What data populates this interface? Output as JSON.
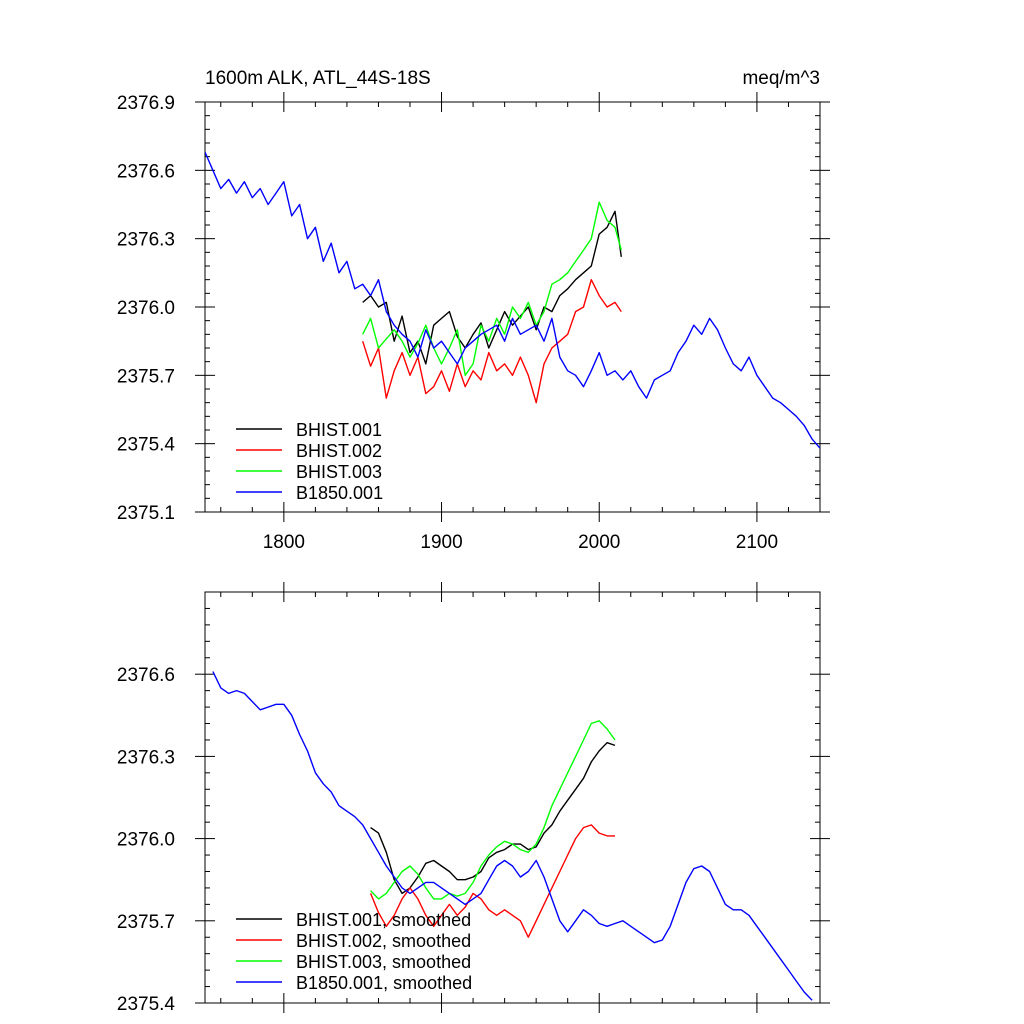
{
  "chart_data": [
    {
      "type": "line",
      "title": "1600m ALK, ATL_44S-18S",
      "units_label": "meq/m^3",
      "xlim": [
        1750,
        2140
      ],
      "ylim": [
        2375.1,
        2376.9
      ],
      "x_ticks": [
        1800,
        1900,
        2000,
        2100
      ],
      "x_tick_labels": [
        "1800",
        "1900",
        "2000",
        "2100"
      ],
      "y_ticks": [
        2375.1,
        2375.4,
        2375.7,
        2376.0,
        2376.3,
        2376.6,
        2376.9
      ],
      "y_tick_labels": [
        "2375.1",
        "2375.4",
        "2375.7",
        "2376.0",
        "2376.3",
        "2376.6",
        "2376.9"
      ],
      "grid": false,
      "legend_position": "bottom-left",
      "series": [
        {
          "name": "BHIST.001",
          "color": "#000000",
          "x": [
            1850,
            1855,
            1860,
            1865,
            1870,
            1875,
            1880,
            1885,
            1890,
            1895,
            1900,
            1905,
            1910,
            1915,
            1920,
            1925,
            1930,
            1935,
            1940,
            1945,
            1950,
            1955,
            1960,
            1965,
            1970,
            1975,
            1980,
            1985,
            1990,
            1995,
            2000,
            2005,
            2010,
            2014
          ],
          "y": [
            2376.02,
            2376.05,
            2376.0,
            2376.02,
            2375.85,
            2375.96,
            2375.8,
            2375.85,
            2375.75,
            2375.92,
            2375.95,
            2375.98,
            2375.87,
            2375.82,
            2375.88,
            2375.93,
            2375.82,
            2375.9,
            2375.98,
            2375.92,
            2375.96,
            2376.0,
            2375.9,
            2376.0,
            2375.98,
            2376.05,
            2376.08,
            2376.12,
            2376.15,
            2376.18,
            2376.32,
            2376.35,
            2376.42,
            2376.22
          ]
        },
        {
          "name": "BHIST.002",
          "color": "#ff0000",
          "x": [
            1850,
            1855,
            1860,
            1865,
            1870,
            1875,
            1880,
            1885,
            1890,
            1895,
            1900,
            1905,
            1910,
            1915,
            1920,
            1925,
            1930,
            1935,
            1940,
            1945,
            1950,
            1955,
            1960,
            1965,
            1970,
            1975,
            1980,
            1985,
            1990,
            1995,
            2000,
            2005,
            2010,
            2014
          ],
          "y": [
            2375.85,
            2375.74,
            2375.82,
            2375.6,
            2375.72,
            2375.8,
            2375.7,
            2375.78,
            2375.62,
            2375.65,
            2375.72,
            2375.63,
            2375.75,
            2375.65,
            2375.72,
            2375.68,
            2375.8,
            2375.72,
            2375.75,
            2375.7,
            2375.78,
            2375.7,
            2375.58,
            2375.75,
            2375.82,
            2375.85,
            2375.88,
            2375.98,
            2376.0,
            2376.12,
            2376.05,
            2376.0,
            2376.02,
            2375.98
          ]
        },
        {
          "name": "BHIST.003",
          "color": "#00ff00",
          "x": [
            1850,
            1855,
            1860,
            1865,
            1870,
            1875,
            1880,
            1885,
            1890,
            1895,
            1900,
            1905,
            1910,
            1915,
            1920,
            1925,
            1930,
            1935,
            1940,
            1945,
            1950,
            1955,
            1960,
            1965,
            1970,
            1975,
            1980,
            1985,
            1990,
            1995,
            2000,
            2005,
            2010,
            2014
          ],
          "y": [
            2375.88,
            2375.95,
            2375.82,
            2375.86,
            2375.9,
            2375.85,
            2375.78,
            2375.84,
            2375.92,
            2375.82,
            2375.75,
            2375.82,
            2375.9,
            2375.7,
            2375.75,
            2375.92,
            2375.85,
            2375.95,
            2375.88,
            2376.0,
            2375.95,
            2376.02,
            2375.92,
            2375.98,
            2376.1,
            2376.12,
            2376.15,
            2376.2,
            2376.25,
            2376.3,
            2376.46,
            2376.38,
            2376.35,
            2376.25
          ]
        },
        {
          "name": "B1850.001",
          "color": "#0000ff",
          "x": [
            1750,
            1755,
            1760,
            1765,
            1770,
            1775,
            1780,
            1785,
            1790,
            1795,
            1800,
            1805,
            1810,
            1815,
            1820,
            1825,
            1830,
            1835,
            1840,
            1845,
            1850,
            1855,
            1860,
            1865,
            1870,
            1875,
            1880,
            1885,
            1890,
            1895,
            1900,
            1905,
            1910,
            1915,
            1920,
            1925,
            1930,
            1935,
            1940,
            1945,
            1950,
            1955,
            1960,
            1965,
            1970,
            1975,
            1980,
            1985,
            1990,
            1995,
            2000,
            2005,
            2010,
            2015,
            2020,
            2025,
            2030,
            2035,
            2040,
            2045,
            2050,
            2055,
            2060,
            2065,
            2070,
            2075,
            2080,
            2085,
            2090,
            2095,
            2100,
            2105,
            2110,
            2115,
            2120,
            2125,
            2130,
            2135,
            2140
          ],
          "y": [
            2376.68,
            2376.6,
            2376.52,
            2376.56,
            2376.5,
            2376.55,
            2376.48,
            2376.52,
            2376.45,
            2376.5,
            2376.55,
            2376.4,
            2376.45,
            2376.3,
            2376.35,
            2376.2,
            2376.28,
            2376.15,
            2376.2,
            2376.08,
            2376.1,
            2376.05,
            2376.12,
            2375.98,
            2375.92,
            2375.88,
            2375.85,
            2375.78,
            2375.9,
            2375.82,
            2375.85,
            2375.8,
            2375.75,
            2375.82,
            2375.85,
            2375.88,
            2375.9,
            2375.92,
            2375.85,
            2375.95,
            2375.88,
            2375.9,
            2375.92,
            2375.85,
            2375.95,
            2375.78,
            2375.72,
            2375.7,
            2375.65,
            2375.72,
            2375.8,
            2375.7,
            2375.72,
            2375.68,
            2375.72,
            2375.65,
            2375.6,
            2375.68,
            2375.7,
            2375.72,
            2375.8,
            2375.85,
            2375.92,
            2375.88,
            2375.95,
            2375.9,
            2375.82,
            2375.75,
            2375.72,
            2375.78,
            2375.7,
            2375.65,
            2375.6,
            2375.58,
            2375.55,
            2375.52,
            2375.48,
            2375.42,
            2375.38
          ]
        }
      ]
    },
    {
      "type": "line",
      "title": "",
      "xlim": [
        1750,
        2140
      ],
      "ylim": [
        2375.4,
        2376.9
      ],
      "x_ticks": [
        1800,
        1900,
        2000,
        2100
      ],
      "y_ticks": [
        2375.4,
        2375.7,
        2376.0,
        2376.3,
        2376.6
      ],
      "y_tick_labels": [
        "2375.4",
        "2375.7",
        "2376.0",
        "2376.3",
        "2376.6"
      ],
      "grid": false,
      "legend_position": "bottom-left",
      "series": [
        {
          "name": "BHIST.001, smoothed",
          "color": "#000000",
          "x": [
            1855,
            1860,
            1865,
            1870,
            1875,
            1880,
            1885,
            1890,
            1895,
            1900,
            1905,
            1910,
            1915,
            1920,
            1925,
            1930,
            1935,
            1940,
            1945,
            1950,
            1955,
            1960,
            1965,
            1970,
            1975,
            1980,
            1985,
            1990,
            1995,
            2000,
            2005,
            2010
          ],
          "y": [
            2376.04,
            2376.02,
            2375.95,
            2375.85,
            2375.8,
            2375.82,
            2375.86,
            2375.91,
            2375.92,
            2375.9,
            2375.88,
            2375.85,
            2375.85,
            2375.86,
            2375.88,
            2375.93,
            2375.95,
            2375.96,
            2375.98,
            2375.98,
            2375.96,
            2375.97,
            2376.02,
            2376.05,
            2376.1,
            2376.14,
            2376.18,
            2376.22,
            2376.28,
            2376.32,
            2376.35,
            2376.34
          ]
        },
        {
          "name": "BHIST.002, smoothed",
          "color": "#ff0000",
          "x": [
            1855,
            1860,
            1865,
            1870,
            1875,
            1880,
            1885,
            1890,
            1895,
            1900,
            1905,
            1910,
            1915,
            1920,
            1925,
            1930,
            1935,
            1940,
            1945,
            1950,
            1955,
            1960,
            1965,
            1970,
            1975,
            1980,
            1985,
            1990,
            1995,
            2000,
            2005,
            2010
          ],
          "y": [
            2375.8,
            2375.73,
            2375.68,
            2375.72,
            2375.78,
            2375.82,
            2375.78,
            2375.72,
            2375.68,
            2375.72,
            2375.76,
            2375.72,
            2375.75,
            2375.8,
            2375.78,
            2375.74,
            2375.72,
            2375.74,
            2375.72,
            2375.7,
            2375.64,
            2375.7,
            2375.76,
            2375.82,
            2375.88,
            2375.94,
            2376.0,
            2376.04,
            2376.05,
            2376.02,
            2376.01,
            2376.01
          ]
        },
        {
          "name": "BHIST.003, smoothed",
          "color": "#00ff00",
          "x": [
            1855,
            1860,
            1865,
            1870,
            1875,
            1880,
            1885,
            1890,
            1895,
            1900,
            1905,
            1910,
            1915,
            1920,
            1925,
            1930,
            1935,
            1940,
            1945,
            1950,
            1955,
            1960,
            1965,
            1970,
            1975,
            1980,
            1985,
            1990,
            1995,
            2000,
            2005,
            2010
          ],
          "y": [
            2375.81,
            2375.78,
            2375.8,
            2375.84,
            2375.88,
            2375.9,
            2375.87,
            2375.82,
            2375.78,
            2375.78,
            2375.8,
            2375.79,
            2375.8,
            2375.84,
            2375.9,
            2375.94,
            2375.97,
            2375.99,
            2375.98,
            2375.96,
            2375.95,
            2375.98,
            2376.04,
            2376.12,
            2376.18,
            2376.24,
            2376.3,
            2376.36,
            2376.42,
            2376.43,
            2376.4,
            2376.36
          ]
        },
        {
          "name": "B1850.001, smoothed",
          "color": "#0000ff",
          "x": [
            1755,
            1760,
            1765,
            1770,
            1775,
            1780,
            1785,
            1790,
            1795,
            1800,
            1805,
            1810,
            1815,
            1820,
            1825,
            1830,
            1835,
            1840,
            1845,
            1850,
            1855,
            1860,
            1865,
            1870,
            1875,
            1880,
            1885,
            1890,
            1895,
            1900,
            1905,
            1910,
            1915,
            1920,
            1925,
            1930,
            1935,
            1940,
            1945,
            1950,
            1955,
            1960,
            1965,
            1970,
            1975,
            1980,
            1985,
            1990,
            1995,
            2000,
            2005,
            2010,
            2015,
            2020,
            2025,
            2030,
            2035,
            2040,
            2045,
            2050,
            2055,
            2060,
            2065,
            2070,
            2075,
            2080,
            2085,
            2090,
            2095,
            2100,
            2105,
            2110,
            2115,
            2120,
            2125,
            2130,
            2135
          ],
          "y": [
            2376.61,
            2376.55,
            2376.53,
            2376.54,
            2376.53,
            2376.5,
            2376.47,
            2376.48,
            2376.49,
            2376.49,
            2376.45,
            2376.38,
            2376.32,
            2376.24,
            2376.2,
            2376.17,
            2376.12,
            2376.1,
            2376.08,
            2376.05,
            2376.0,
            2375.95,
            2375.9,
            2375.86,
            2375.82,
            2375.8,
            2375.82,
            2375.84,
            2375.84,
            2375.82,
            2375.8,
            2375.78,
            2375.76,
            2375.78,
            2375.8,
            2375.85,
            2375.9,
            2375.92,
            2375.9,
            2375.86,
            2375.88,
            2375.92,
            2375.86,
            2375.78,
            2375.7,
            2375.66,
            2375.7,
            2375.74,
            2375.72,
            2375.69,
            2375.68,
            2375.69,
            2375.7,
            2375.68,
            2375.66,
            2375.64,
            2375.62,
            2375.63,
            2375.68,
            2375.76,
            2375.84,
            2375.89,
            2375.9,
            2375.88,
            2375.82,
            2375.76,
            2375.74,
            2375.74,
            2375.72,
            2375.68,
            2375.64,
            2375.6,
            2375.56,
            2375.52,
            2375.48,
            2375.44,
            2375.41
          ]
        }
      ]
    }
  ]
}
